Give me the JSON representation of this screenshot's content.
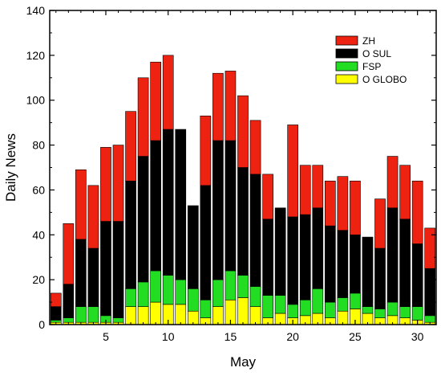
{
  "chart_data": {
    "type": "bar",
    "stacked": true,
    "title": "",
    "xlabel": "May",
    "ylabel": "Daily News",
    "xlim": [
      0.5,
      31.5
    ],
    "ylim": [
      0,
      140
    ],
    "xticks": [
      5,
      10,
      15,
      20,
      25,
      30
    ],
    "yticks": [
      0,
      20,
      40,
      60,
      80,
      100,
      120,
      140
    ],
    "legend_position": "top-right",
    "x": [
      1,
      2,
      3,
      4,
      5,
      6,
      7,
      8,
      9,
      10,
      11,
      12,
      13,
      14,
      15,
      16,
      17,
      18,
      19,
      20,
      21,
      22,
      23,
      24,
      25,
      26,
      27,
      28,
      29,
      30,
      31
    ],
    "series": [
      {
        "name": "O GLOBO",
        "color": "#ffff00",
        "values": [
          1,
          1,
          1,
          1,
          1,
          1,
          8,
          8,
          10,
          9,
          9,
          6,
          3,
          8,
          11,
          12,
          8,
          3,
          5,
          3,
          4,
          5,
          3,
          6,
          7,
          5,
          3,
          4,
          3,
          2,
          1
        ]
      },
      {
        "name": "FSP",
        "color": "#22dd22",
        "values": [
          1,
          2,
          7,
          7,
          3,
          2,
          8,
          11,
          14,
          13,
          11,
          10,
          8,
          12,
          13,
          10,
          9,
          10,
          8,
          6,
          7,
          11,
          7,
          6,
          7,
          3,
          4,
          6,
          5,
          6,
          3
        ]
      },
      {
        "name": "O SUL",
        "color": "#000000",
        "values": [
          6,
          15,
          30,
          26,
          42,
          43,
          48,
          56,
          58,
          65,
          67,
          37,
          51,
          62,
          58,
          48,
          50,
          34,
          39,
          39,
          38,
          36,
          34,
          30,
          26,
          31,
          27,
          42,
          39,
          28,
          21
        ]
      },
      {
        "name": "ZH",
        "color": "#ee2211",
        "values": [
          6,
          27,
          31,
          28,
          33,
          34,
          31,
          35,
          35,
          33,
          0,
          0,
          31,
          30,
          31,
          32,
          24,
          20,
          0,
          41,
          22,
          19,
          20,
          24,
          24,
          0,
          22,
          23,
          24,
          28,
          18
        ]
      }
    ]
  }
}
